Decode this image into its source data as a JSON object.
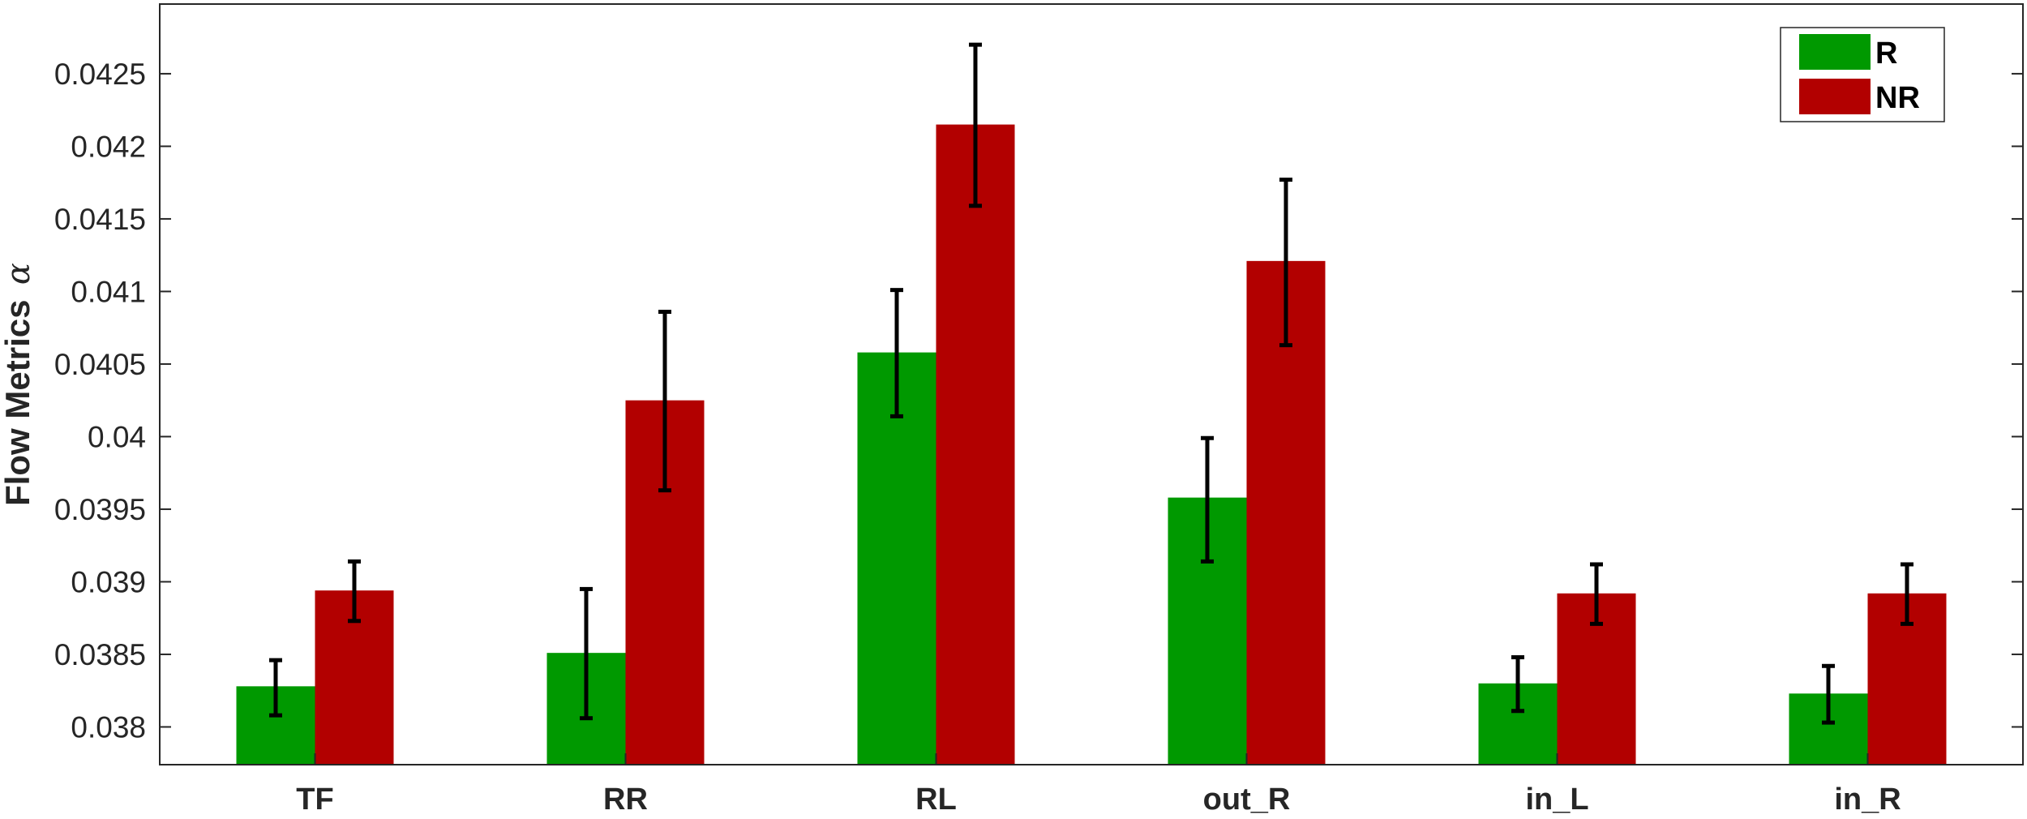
{
  "chart_data": {
    "type": "bar",
    "ylabel": "Flow Metrics",
    "ylabel_symbol": "α",
    "categories": [
      "TF",
      "RR",
      "RL",
      "out_R",
      "in_L",
      "in_R"
    ],
    "ylim": [
      0.03774,
      0.04298
    ],
    "yticks": [
      0.038,
      0.0385,
      0.039,
      0.0395,
      0.04,
      0.0405,
      0.041,
      0.0415,
      0.042,
      0.0425
    ],
    "ytick_labels": [
      "0.038",
      "0.0385",
      "0.039",
      "0.0395",
      "0.04",
      "0.0405",
      "0.041",
      "0.0415",
      "0.042",
      "0.0425"
    ],
    "grid": false,
    "legend_position": "top-right",
    "series": [
      {
        "name": "R",
        "color": "#009900",
        "values": [
          0.03828,
          0.03851,
          0.04058,
          0.03958,
          0.0383,
          0.03823
        ],
        "err_low": [
          0.03808,
          0.03806,
          0.04014,
          0.03914,
          0.03811,
          0.03803
        ],
        "err_high": [
          0.03846,
          0.03895,
          0.04101,
          0.03999,
          0.03848,
          0.03842
        ]
      },
      {
        "name": "NR",
        "color": "#b20000",
        "values": [
          0.03894,
          0.04025,
          0.04215,
          0.04121,
          0.03892,
          0.03892
        ],
        "err_low": [
          0.03873,
          0.03963,
          0.04159,
          0.04063,
          0.03871,
          0.03871
        ],
        "err_high": [
          0.03914,
          0.04086,
          0.0427,
          0.04177,
          0.03912,
          0.03912
        ]
      }
    ]
  }
}
